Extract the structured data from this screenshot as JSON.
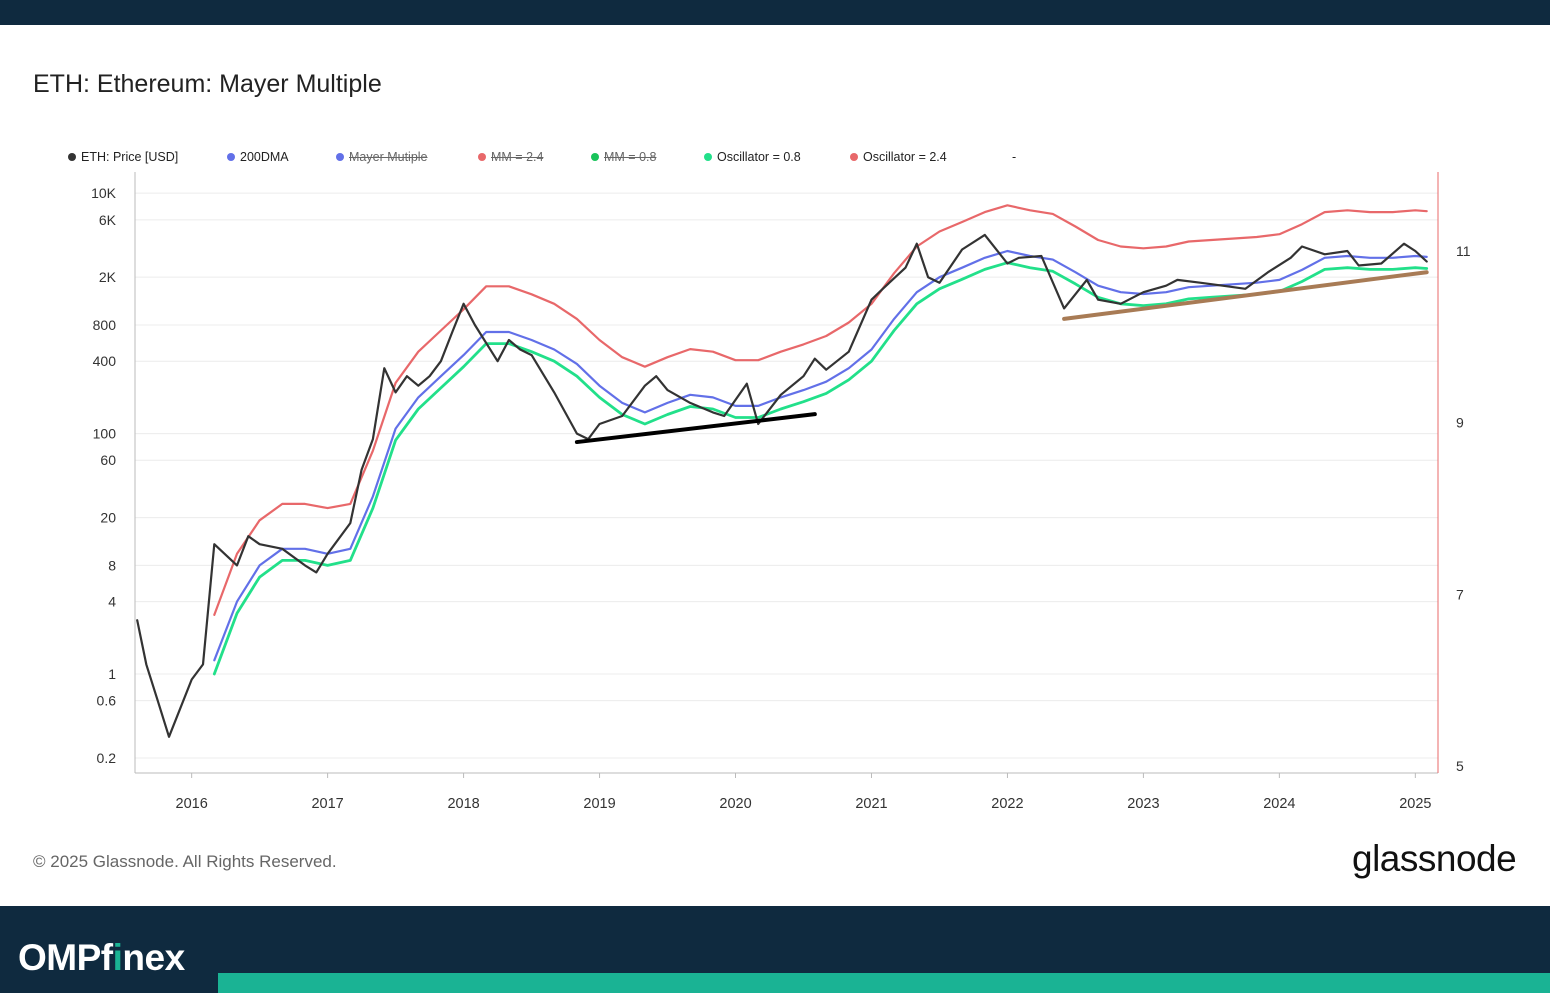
{
  "chart_title": "ETH: Ethereum: Mayer Multiple",
  "legend": [
    {
      "label": "ETH: Price [USD]",
      "color": "#333333",
      "enabled": true
    },
    {
      "label": "200DMA",
      "color": "#6270e8",
      "enabled": true
    },
    {
      "label": "Mayer Mutiple",
      "color": "#6270e8",
      "enabled": false
    },
    {
      "label": "MM = 2.4",
      "color": "#e8686a",
      "enabled": false
    },
    {
      "label": "MM = 0.8",
      "color": "#19c35a",
      "enabled": false
    },
    {
      "label": "Oscillator = 0.8",
      "color": "#22e08a",
      "enabled": true
    },
    {
      "label": "Oscillator = 2.4",
      "color": "#e8686a",
      "enabled": true
    },
    {
      "label": "-",
      "color": "",
      "enabled": true
    }
  ],
  "copyright": "© 2025 Glassnode. All Rights Reserved.",
  "brand": "glassnode",
  "footer_logo": {
    "main": "OMPf",
    "accent": "i",
    "rest": "nex"
  },
  "chart_data": {
    "type": "line",
    "title": "ETH: Ethereum: Mayer Multiple",
    "x_ticks": [
      "2016",
      "2017",
      "2018",
      "2019",
      "2020",
      "2021",
      "2022",
      "2023",
      "2024",
      "2025"
    ],
    "xlim": [
      "2015-08",
      "2025-03"
    ],
    "y_ticks_left": [
      "10K",
      "6K",
      "2K",
      "800",
      "400",
      "100",
      "60",
      "20",
      "8",
      "4",
      "1",
      "0.6",
      "0.2"
    ],
    "y_scale": "log",
    "ylim": [
      0.15,
      15000
    ],
    "y_ticks_right": [
      "11",
      "9",
      "7",
      "5"
    ],
    "grid": "horizontal",
    "legend_position": "top",
    "series": [
      {
        "name": "ETH: Price [USD]",
        "color": "#333333",
        "x": [
          "2015-08-07",
          "2015-09",
          "2015-10",
          "2015-11",
          "2016-01",
          "2016-02",
          "2016-03",
          "2016-05",
          "2016-06",
          "2016-07",
          "2016-09",
          "2016-11",
          "2016-12",
          "2017-01",
          "2017-03",
          "2017-04",
          "2017-05",
          "2017-06",
          "2017-07",
          "2017-08",
          "2017-09",
          "2017-10",
          "2017-11",
          "2017-12",
          "2018-01",
          "2018-02",
          "2018-04",
          "2018-05",
          "2018-06",
          "2018-07",
          "2018-09",
          "2018-11",
          "2018-12",
          "2019-01",
          "2019-03",
          "2019-05",
          "2019-06",
          "2019-07",
          "2019-09",
          "2019-11",
          "2019-12",
          "2020-02",
          "2020-03",
          "2020-05",
          "2020-07",
          "2020-08",
          "2020-09",
          "2020-11",
          "2021-01",
          "2021-02",
          "2021-04",
          "2021-05",
          "2021-06",
          "2021-07",
          "2021-09",
          "2021-11",
          "2022-01",
          "2022-02",
          "2022-04",
          "2022-06",
          "2022-08",
          "2022-09",
          "2022-11",
          "2023-01",
          "2023-03",
          "2023-04",
          "2023-06",
          "2023-08",
          "2023-10",
          "2023-12",
          "2024-02",
          "2024-03",
          "2024-05",
          "2024-07",
          "2024-08",
          "2024-10",
          "2024-12",
          "2025-01",
          "2025-02"
        ],
        "values": [
          2.8,
          1.2,
          0.6,
          0.3,
          0.9,
          1.2,
          12,
          8,
          14,
          12,
          11,
          8,
          7,
          10,
          18,
          50,
          90,
          350,
          220,
          300,
          250,
          300,
          400,
          700,
          1200,
          800,
          400,
          600,
          500,
          450,
          220,
          100,
          90,
          120,
          140,
          250,
          300,
          230,
          180,
          150,
          140,
          260,
          120,
          210,
          300,
          420,
          340,
          480,
          1300,
          1600,
          2400,
          3800,
          2000,
          1800,
          3400,
          4500,
          2600,
          2900,
          3000,
          1100,
          1900,
          1300,
          1200,
          1500,
          1700,
          1900,
          1800,
          1700,
          1600,
          2200,
          2900,
          3600,
          3100,
          3300,
          2500,
          2600,
          3800,
          3300,
          2700
        ]
      },
      {
        "name": "200DMA",
        "color": "#6270e8",
        "x": [
          "2016-03",
          "2016-05",
          "2016-07",
          "2016-09",
          "2016-11",
          "2017-01",
          "2017-03",
          "2017-05",
          "2017-07",
          "2017-09",
          "2017-11",
          "2018-01",
          "2018-03",
          "2018-05",
          "2018-07",
          "2018-09",
          "2018-11",
          "2019-01",
          "2019-03",
          "2019-05",
          "2019-07",
          "2019-09",
          "2019-11",
          "2020-01",
          "2020-03",
          "2020-05",
          "2020-07",
          "2020-09",
          "2020-11",
          "2021-01",
          "2021-03",
          "2021-05",
          "2021-07",
          "2021-09",
          "2021-11",
          "2022-01",
          "2022-03",
          "2022-05",
          "2022-07",
          "2022-09",
          "2022-11",
          "2023-01",
          "2023-03",
          "2023-05",
          "2023-07",
          "2023-09",
          "2023-11",
          "2024-01",
          "2024-03",
          "2024-05",
          "2024-07",
          "2024-09",
          "2024-11",
          "2025-01",
          "2025-02"
        ],
        "values": [
          1.3,
          4,
          8,
          11,
          11,
          10,
          11,
          30,
          110,
          200,
          300,
          450,
          700,
          700,
          600,
          500,
          380,
          250,
          180,
          150,
          180,
          210,
          200,
          170,
          170,
          200,
          230,
          270,
          350,
          500,
          900,
          1500,
          2000,
          2400,
          2900,
          3300,
          3000,
          2800,
          2200,
          1700,
          1500,
          1450,
          1500,
          1650,
          1700,
          1750,
          1800,
          1900,
          2300,
          2900,
          3000,
          2900,
          2900,
          3000,
          2950
        ]
      },
      {
        "name": "Oscillator = 0.8",
        "color": "#22e08a",
        "x": [
          "2016-03",
          "2016-05",
          "2016-07",
          "2016-09",
          "2016-11",
          "2017-01",
          "2017-03",
          "2017-05",
          "2017-07",
          "2017-09",
          "2017-11",
          "2018-01",
          "2018-03",
          "2018-05",
          "2018-07",
          "2018-09",
          "2018-11",
          "2019-01",
          "2019-03",
          "2019-05",
          "2019-07",
          "2019-09",
          "2019-11",
          "2020-01",
          "2020-03",
          "2020-05",
          "2020-07",
          "2020-09",
          "2020-11",
          "2021-01",
          "2021-03",
          "2021-05",
          "2021-07",
          "2021-09",
          "2021-11",
          "2022-01",
          "2022-03",
          "2022-05",
          "2022-07",
          "2022-09",
          "2022-11",
          "2023-01",
          "2023-03",
          "2023-05",
          "2023-07",
          "2023-09",
          "2023-11",
          "2024-01",
          "2024-03",
          "2024-05",
          "2024-07",
          "2024-09",
          "2024-11",
          "2025-01",
          "2025-02"
        ],
        "values": [
          1.0,
          3.2,
          6.4,
          8.8,
          8.8,
          8.0,
          8.8,
          24,
          88,
          160,
          240,
          360,
          560,
          560,
          480,
          400,
          300,
          200,
          144,
          120,
          144,
          168,
          160,
          136,
          136,
          160,
          184,
          216,
          280,
          400,
          720,
          1200,
          1600,
          1920,
          2320,
          2640,
          2400,
          2240,
          1760,
          1360,
          1200,
          1160,
          1200,
          1320,
          1360,
          1400,
          1440,
          1520,
          1840,
          2320,
          2400,
          2320,
          2320,
          2400,
          2360
        ]
      },
      {
        "name": "Oscillator = 2.4",
        "color": "#e8686a",
        "x": [
          "2016-03",
          "2016-05",
          "2016-07",
          "2016-09",
          "2016-11",
          "2017-01",
          "2017-03",
          "2017-05",
          "2017-07",
          "2017-09",
          "2017-11",
          "2018-01",
          "2018-03",
          "2018-05",
          "2018-07",
          "2018-09",
          "2018-11",
          "2019-01",
          "2019-03",
          "2019-05",
          "2019-07",
          "2019-09",
          "2019-11",
          "2020-01",
          "2020-03",
          "2020-05",
          "2020-07",
          "2020-09",
          "2020-11",
          "2021-01",
          "2021-03",
          "2021-05",
          "2021-07",
          "2021-09",
          "2021-11",
          "2022-01",
          "2022-03",
          "2022-05",
          "2022-07",
          "2022-09",
          "2022-11",
          "2023-01",
          "2023-03",
          "2023-05",
          "2023-07",
          "2023-09",
          "2023-11",
          "2024-01",
          "2024-03",
          "2024-05",
          "2024-07",
          "2024-09",
          "2024-11",
          "2025-01",
          "2025-02"
        ],
        "values": [
          3.1,
          10,
          19,
          26,
          26,
          24,
          26,
          72,
          264,
          480,
          720,
          1080,
          1680,
          1680,
          1440,
          1200,
          900,
          600,
          432,
          360,
          432,
          504,
          480,
          408,
          408,
          480,
          552,
          648,
          840,
          1200,
          2160,
          3600,
          4800,
          5760,
          6960,
          7920,
          7200,
          6720,
          5280,
          4080,
          3600,
          3480,
          3600,
          3960,
          4080,
          4200,
          4320,
          4560,
          5520,
          6960,
          7200,
          6960,
          6960,
          7200,
          7080
        ]
      }
    ],
    "annotations": [
      {
        "type": "trendline",
        "color": "#000000",
        "from": [
          "2018-11",
          85
        ],
        "to": [
          "2020-08",
          145
        ]
      },
      {
        "type": "trendline",
        "color": "#a87b55",
        "from": [
          "2022-06",
          900
        ],
        "to": [
          "2025-02",
          2200
        ]
      }
    ]
  }
}
